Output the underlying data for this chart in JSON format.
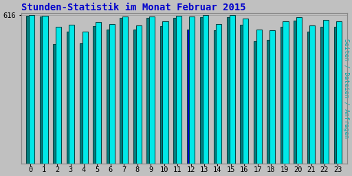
{
  "title": "Stunden-Statistik im Monat Februar 2015",
  "ylabel": "Seiten / Dateien / Anfragen",
  "ylabel_color": "#00aaaa",
  "background_color": "#c0c0c0",
  "hours": [
    0,
    1,
    2,
    3,
    4,
    5,
    6,
    7,
    8,
    9,
    10,
    11,
    12,
    13,
    14,
    15,
    16,
    17,
    18,
    19,
    20,
    21,
    22,
    23
  ],
  "seiten": [
    616,
    614,
    570,
    578,
    548,
    590,
    580,
    612,
    575,
    612,
    592,
    614,
    612,
    616,
    580,
    616,
    604,
    556,
    554,
    592,
    610,
    574,
    596,
    592
  ],
  "anfragen": [
    614,
    612,
    498,
    550,
    500,
    572,
    558,
    606,
    558,
    606,
    572,
    606,
    556,
    608,
    554,
    610,
    578,
    510,
    514,
    570,
    594,
    548,
    570,
    570
  ],
  "special_blue_hour": 12,
  "color_cyan": "#00e8e8",
  "color_teal": "#008080",
  "color_blue": "#0000dd",
  "ymin": 0,
  "ymax": 625,
  "ytick_val": 616,
  "bar_width": 0.38,
  "title_color": "#0000cc",
  "title_fontsize": 10,
  "tick_fontsize": 7.5,
  "border_color": "#004444",
  "edge_lw": 0.8
}
